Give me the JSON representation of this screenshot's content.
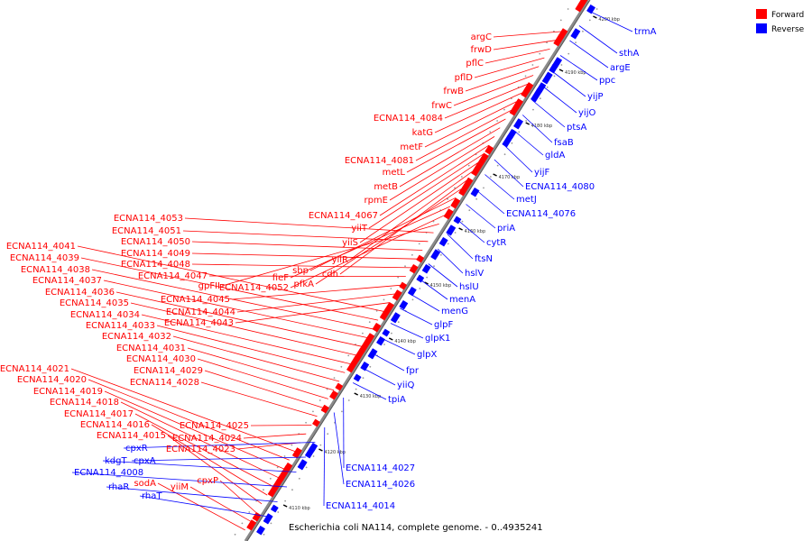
{
  "caption": "Escherichia coli NA114, complete genome. - 0..4935241",
  "colors": {
    "forward": "#ff0000",
    "reverse": "#0000ff",
    "axis": "#888888"
  },
  "legend": [
    {
      "label": "Forward",
      "color": "#ff0000"
    },
    {
      "label": "Reverse",
      "color": "#0000ff"
    }
  ],
  "scale_ticks": [
    "4110 kbp",
    "4120 kbp",
    "4130 kbp",
    "4140 kbp",
    "4150 kbp",
    "4160 kbp",
    "4170 kbp",
    "4180 kbp",
    "4190 kbp",
    "4200 kbp"
  ],
  "forward_labels": [
    "argC",
    "frwD",
    "pflC",
    "pflD",
    "frwB",
    "frwC",
    "ECNA114_4084",
    "katG",
    "metF",
    "ECNA114_4081",
    "metL",
    "metB",
    "rpmE",
    "ECNA114_4067",
    "yiiT",
    "yiiS",
    "yiiR",
    "cdh",
    "pfkA",
    "sbp",
    "fieF",
    "ECNA114_4052",
    "gpFII",
    "ECNA114_4053",
    "ECNA114_4051",
    "ECNA114_4050",
    "ECNA114_4049",
    "ECNA114_4048",
    "ECNA114_4047",
    "ECNA114_4045",
    "ECNA114_4044",
    "ECNA114_4043",
    "ECNA114_4041",
    "ECNA114_4039",
    "ECNA114_4038",
    "ECNA114_4037",
    "ECNA114_4036",
    "ECNA114_4035",
    "ECNA114_4034",
    "ECNA114_4033",
    "ECNA114_4032",
    "ECNA114_4031",
    "ECNA114_4030",
    "ECNA114_4029",
    "ECNA114_4028",
    "ECNA114_4025",
    "ECNA114_4024",
    "ECNA114_4023",
    "ECNA114_4021",
    "ECNA114_4020",
    "ECNA114_4019",
    "ECNA114_4018",
    "ECNA114_4017",
    "ECNA114_4016",
    "ECNA114_4015",
    "cpxP",
    "yiiM",
    "sodA"
  ],
  "reverse_labels": [
    "trmA",
    "sthA",
    "argE",
    "ppc",
    "yijP",
    "yijO",
    "ptsA",
    "fsaB",
    "gldA",
    "yijF",
    "ECNA114_4080",
    "metJ",
    "ECNA114_4076",
    "priA",
    "cytR",
    "ftsN",
    "hslV",
    "hslU",
    "menA",
    "menG",
    "glpF",
    "glpK1",
    "glpX",
    "fpr",
    "yiiQ",
    "tpiA",
    "ECNA114_4027",
    "ECNA114_4026",
    "ECNA114_4014",
    "cpxR",
    "cpxA",
    "kdgT",
    "ECNA114_4008",
    "rhaR",
    "rhaT"
  ]
}
